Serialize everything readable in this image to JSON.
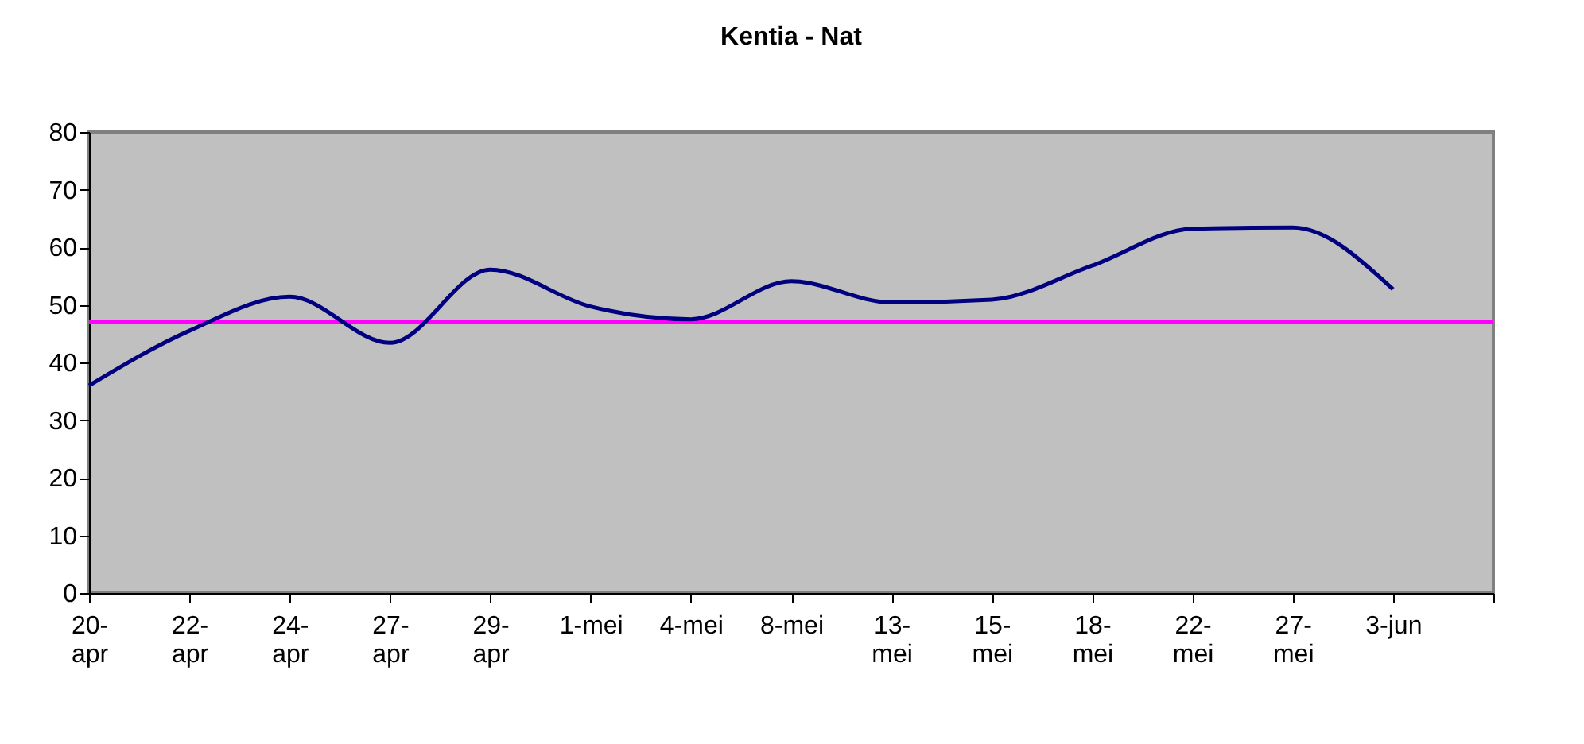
{
  "chart_data": {
    "type": "line",
    "title": "Kentia - Nat",
    "categories": [
      "20-apr",
      "22-apr",
      "24-apr",
      "27-apr",
      "29-apr",
      "1-mei",
      "4-mei",
      "8-mei",
      "13-mei",
      "15-mei",
      "18-mei",
      "22-mei",
      "27-mei",
      "3-jun",
      null
    ],
    "series": [
      {
        "color": "#000080",
        "values": [
          36,
          45.5,
          51.4,
          43.4,
          56.1,
          49.7,
          47.5,
          54.1,
          50.4,
          50.9,
          56.8,
          63.2,
          63.4,
          52.7,
          null
        ]
      }
    ],
    "ylim": [
      0,
      80
    ],
    "yticks": [
      0,
      10,
      20,
      30,
      40,
      50,
      60,
      70,
      80
    ],
    "ref_lines": [
      {
        "axis": "y",
        "value": 47,
        "color": "#ff00ff"
      }
    ],
    "marker": "none",
    "line_style": "solid"
  }
}
